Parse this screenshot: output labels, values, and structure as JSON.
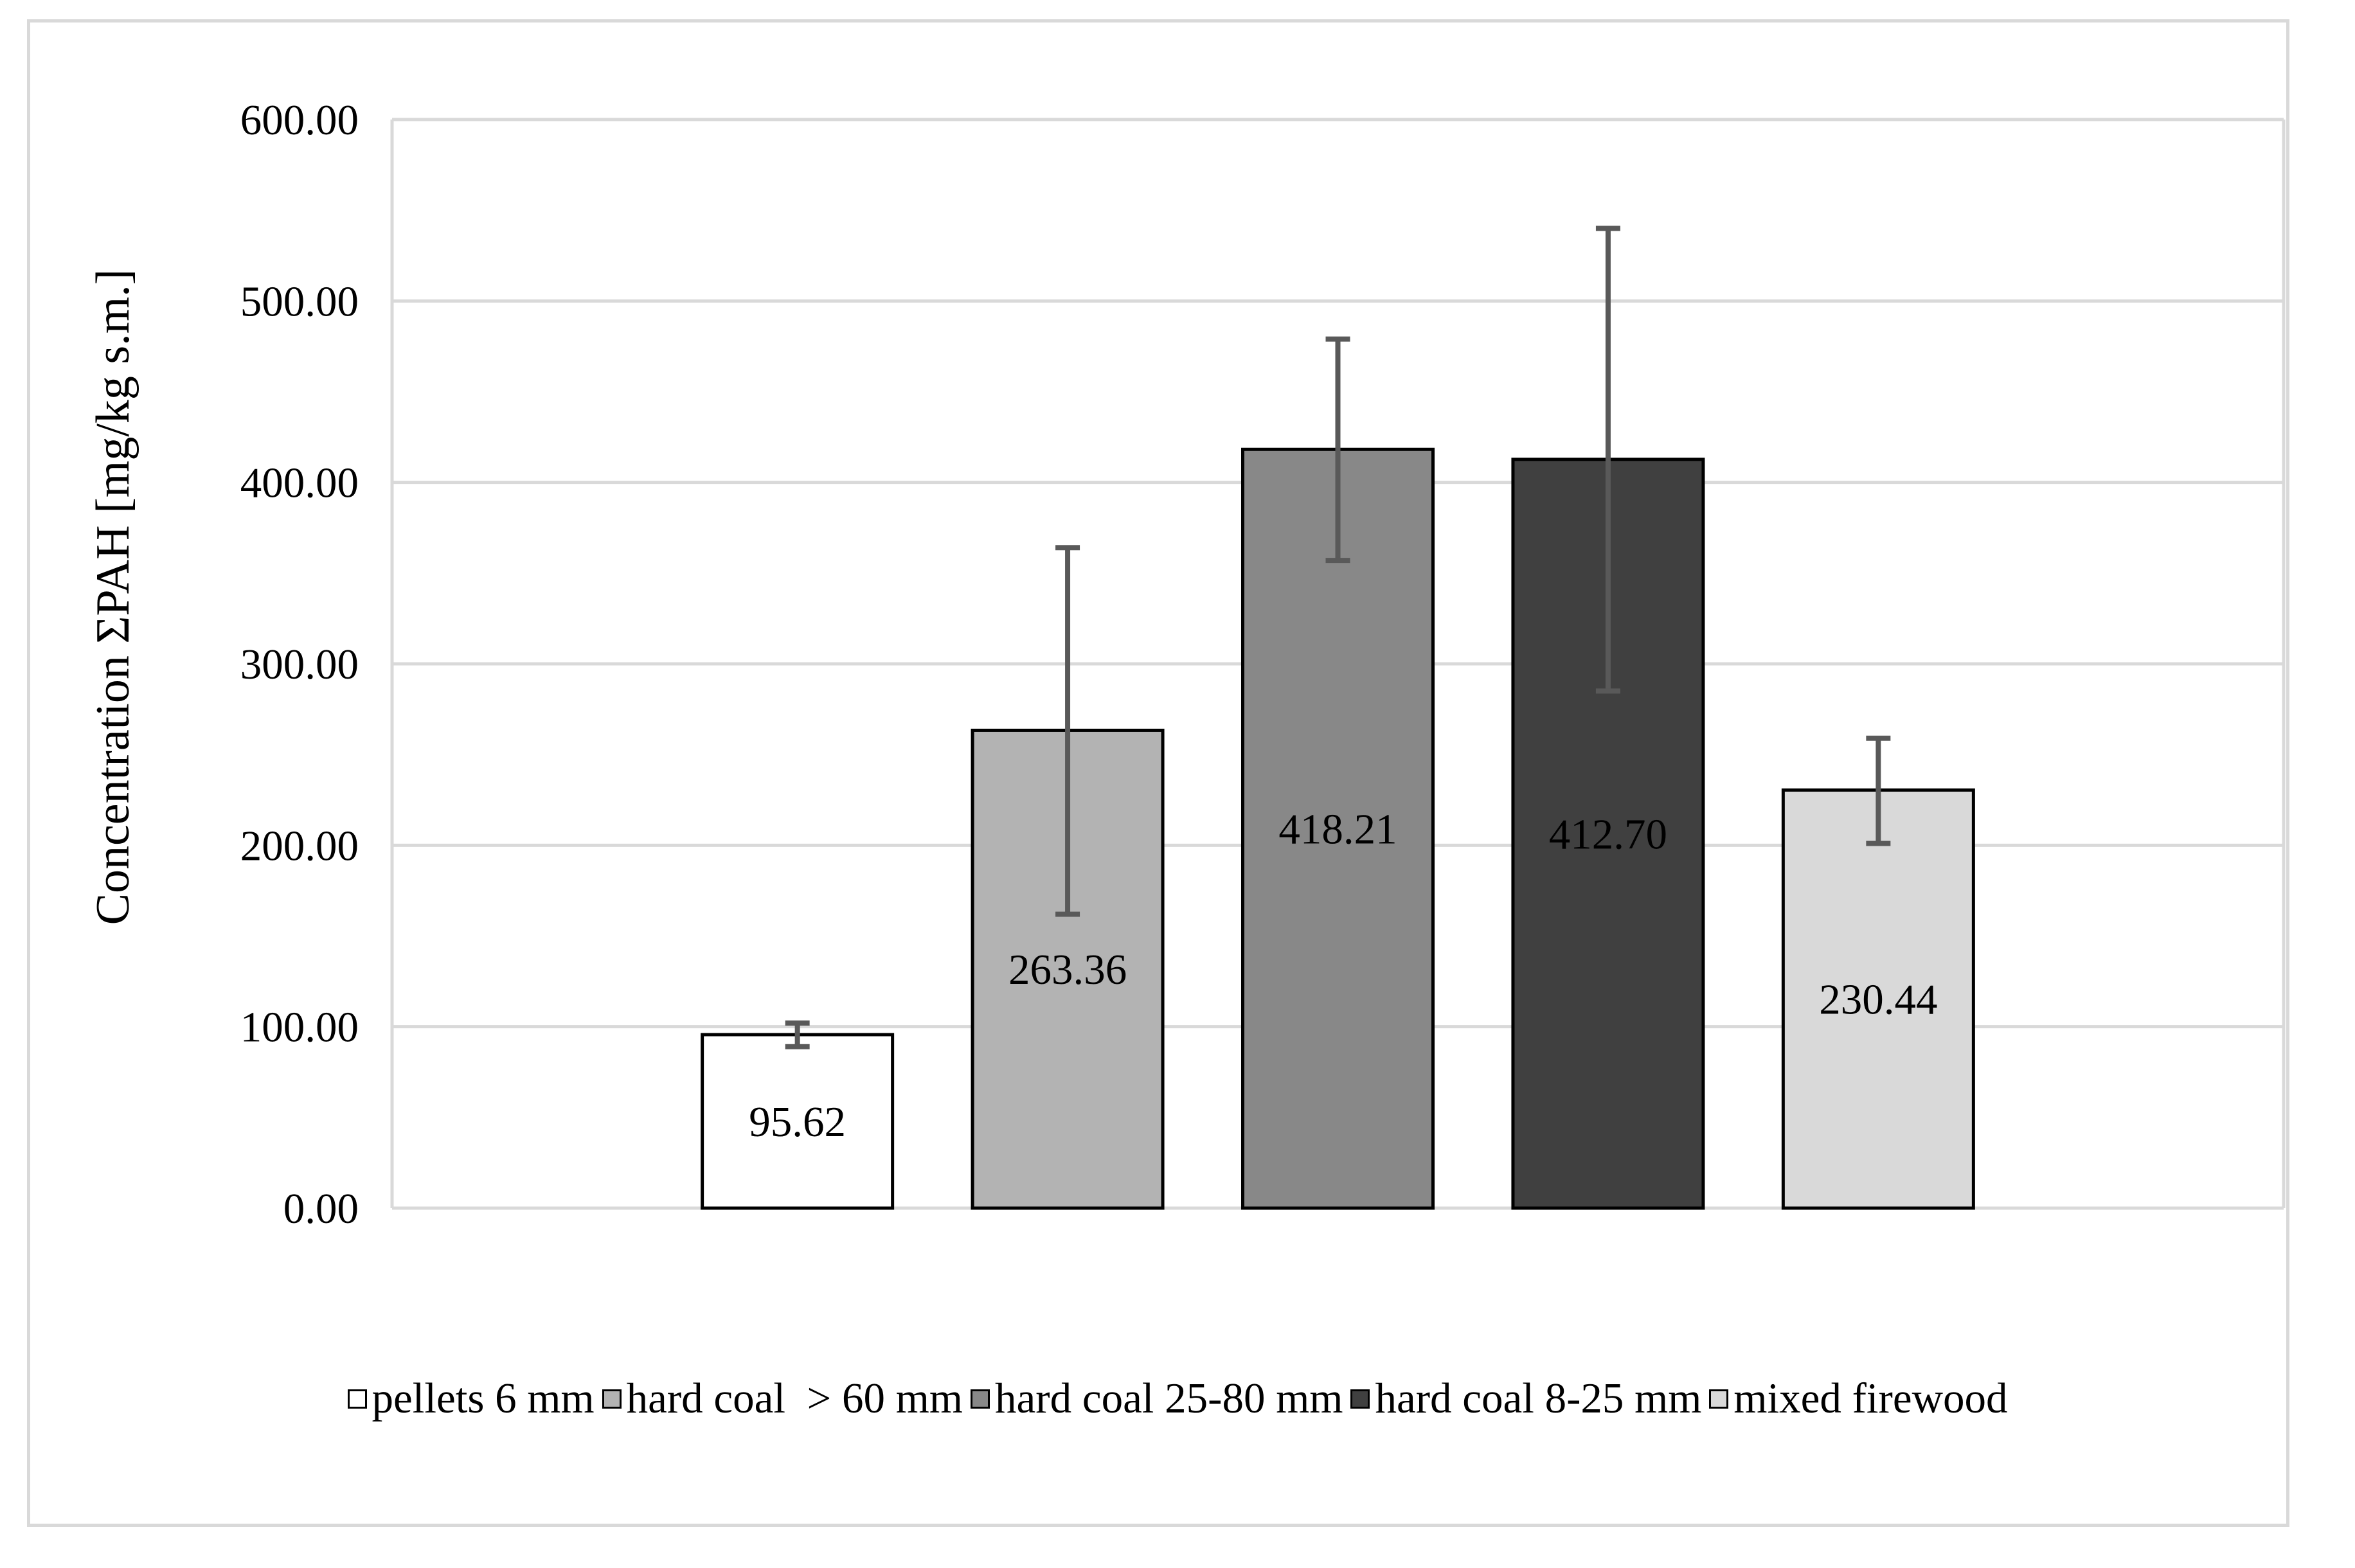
{
  "chart_data": {
    "type": "bar",
    "title": "",
    "xlabel": "",
    "ylabel": "Concentration ΣPAH [mg/kg s.m.]",
    "ylim": [
      0,
      600
    ],
    "yticks": [
      0,
      100,
      200,
      300,
      400,
      500,
      600
    ],
    "ytick_labels": [
      "0.00",
      "100.00",
      "200.00",
      "300.00",
      "400.00",
      "500.00",
      "600.00"
    ],
    "grid": true,
    "legend_position": "bottom",
    "categories": [
      "pellets 6 mm",
      "hard coal  > 60 mm",
      "hard coal 25-80 mm",
      "hard coal 8-25 mm",
      "mixed firewood"
    ],
    "values": [
      95.62,
      263.36,
      418.21,
      412.7,
      230.44
    ],
    "value_labels": [
      "95.62",
      "263.36",
      "418.21",
      "412.70",
      "230.44"
    ],
    "error_low": [
      89,
      162,
      357,
      285,
      201
    ],
    "error_high": [
      102,
      364,
      479,
      540,
      259
    ],
    "colors": [
      "#ffffff",
      "#b3b3b3",
      "#888888",
      "#404040",
      "#d9d9d9"
    ]
  }
}
